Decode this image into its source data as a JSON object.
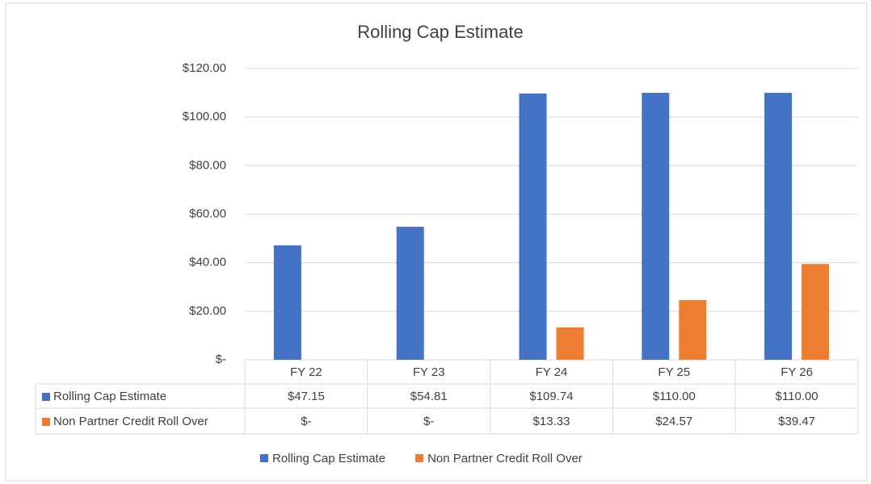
{
  "chart_data": {
    "type": "bar",
    "title": "Rolling Cap Estimate",
    "categories": [
      "FY 22",
      "FY 23",
      "FY 24",
      "FY 25",
      "FY 26"
    ],
    "series": [
      {
        "name": "Rolling Cap Estimate",
        "color": "#4472c4",
        "values": [
          47.15,
          54.81,
          109.74,
          110,
          110
        ],
        "value_labels": [
          "$47.15",
          "$54.81",
          "$109.74",
          "$110.00",
          "$110.00"
        ]
      },
      {
        "name": "Non Partner Credit Roll Over",
        "color": "#ed7d31",
        "values": [
          0,
          0,
          13.33,
          24.57,
          39.47
        ],
        "value_labels": [
          "$-",
          "$-",
          "$13.33",
          "$24.57",
          "$39.47"
        ]
      }
    ],
    "ylim": [
      0,
      120
    ],
    "yticks": [
      {
        "value": 0,
        "label": "$-"
      },
      {
        "value": 20,
        "label": "$20.00"
      },
      {
        "value": 40,
        "label": "$40.00"
      },
      {
        "value": 60,
        "label": "$60.00"
      },
      {
        "value": 80,
        "label": "$80.00"
      },
      {
        "value": 100,
        "label": "$100.00"
      },
      {
        "value": 120,
        "label": "$120.00"
      }
    ],
    "grid": true,
    "legend": "bottom"
  }
}
